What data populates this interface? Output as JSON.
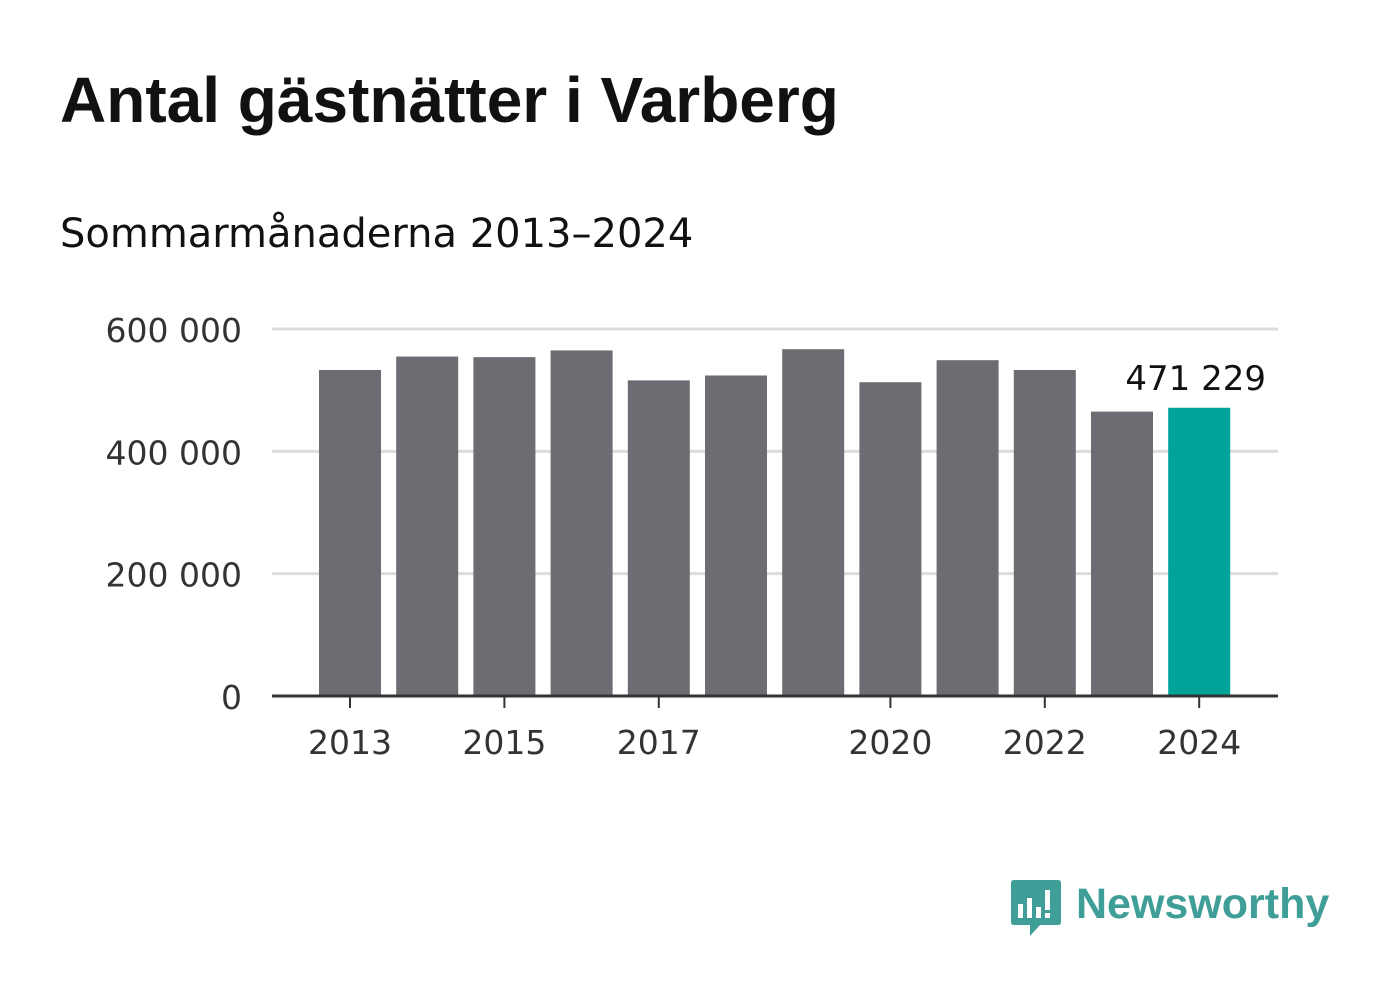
{
  "chart_data": {
    "type": "bar",
    "title": "Antal gästnätter i Varberg",
    "subtitle": "Sommarmånaderna 2013–2024",
    "xlabel": "",
    "ylabel": "",
    "categories": [
      "2013",
      "2014",
      "2015",
      "2016",
      "2017",
      "2018",
      "2019",
      "2020",
      "2021",
      "2022",
      "2023",
      "2024"
    ],
    "values": [
      533000,
      555000,
      554000,
      565000,
      516000,
      524000,
      567000,
      513000,
      549000,
      533000,
      465000,
      471229
    ],
    "ylim": [
      0,
      600000
    ],
    "yticks": [
      {
        "value": 0,
        "label": "0"
      },
      {
        "value": 200000,
        "label": "200 000"
      },
      {
        "value": 400000,
        "label": "400 000"
      },
      {
        "value": 600000,
        "label": "600 000"
      }
    ],
    "xtick_labels": [
      "2013",
      "2015",
      "2017",
      "2020",
      "2022",
      "2024"
    ],
    "highlight_index": 11,
    "highlight_label": "471 229",
    "grid": true,
    "colors": {
      "bar": "#6d6c73",
      "highlight": "#00a398",
      "grid": "#dcdcdc",
      "axis": "#333333"
    }
  },
  "branding": {
    "logo_text": "Newsworthy",
    "logo_icon": "newsworthy-chart-bubble-icon",
    "logo_color": "#3f9f98"
  }
}
